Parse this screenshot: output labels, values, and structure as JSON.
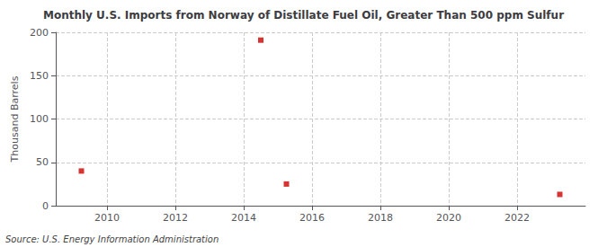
{
  "chart_data": {
    "type": "scatter",
    "title": "Monthly U.S. Imports from Norway of Distillate Fuel Oil, Greater Than 500 ppm Sulfur",
    "ylabel": "Thousand Barrels",
    "annotations": [
      "Source: U.S. Energy Information Administration"
    ],
    "x": [
      2009.25,
      2014.5,
      2015.25,
      2023.25
    ],
    "values": [
      40,
      191,
      25,
      13
    ],
    "color": "#cc0000",
    "marker": "square",
    "xlim": [
      2008.5,
      2024.0
    ],
    "ylim": [
      0,
      200
    ],
    "xticks": [
      2010,
      2012,
      2014,
      2016,
      2018,
      2020,
      2022
    ],
    "yticks": [
      0,
      50,
      100,
      150,
      200
    ],
    "grid": true
  }
}
